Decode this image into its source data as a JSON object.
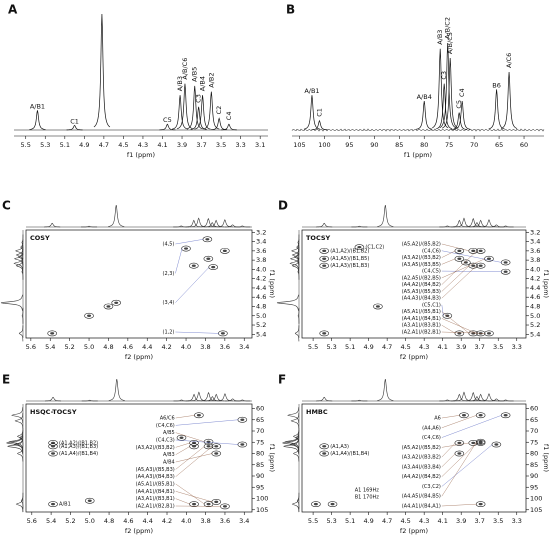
{
  "chart_data": [
    {
      "type": "spectrum",
      "panel": "A",
      "xlabel": "f1 (ppm)",
      "xlim": [
        5.62,
        3.02
      ],
      "xticks": [
        5.5,
        5.3,
        5.1,
        4.9,
        4.7,
        4.5,
        4.3,
        4.1,
        3.9,
        3.7,
        3.5,
        3.3,
        3.1
      ],
      "x": [
        5.38,
        5.0,
        4.72,
        4.05,
        3.92,
        3.87,
        3.77,
        3.73,
        3.69,
        3.6,
        3.52,
        3.42
      ],
      "values": [
        0.17,
        0.04,
        1,
        0.05,
        0.3,
        0.4,
        0.38,
        0.2,
        0.3,
        0.33,
        0.1,
        0.05
      ],
      "labels": [
        "A/B1",
        "C1",
        null,
        "C5",
        "A/B3",
        "A/B/C6",
        "A/B5",
        "C3",
        "A/B4",
        "A/B2",
        "C2",
        "C4"
      ],
      "color": "#111111"
    },
    {
      "type": "spectrum",
      "panel": "B",
      "xlabel": "f1 (ppm)",
      "xlim": [
        106.5,
        56
      ],
      "xticks": [
        105,
        100,
        95,
        90,
        85,
        80,
        75,
        70,
        65,
        60
      ],
      "x": [
        102.5,
        101,
        80,
        76.8,
        76,
        75.3,
        74.8,
        73,
        72.4,
        65.5,
        63
      ],
      "values": [
        0.3,
        0.08,
        0.25,
        0.7,
        0.4,
        0.75,
        0.62,
        0.15,
        0.25,
        0.35,
        0.5
      ],
      "labels": [
        "A/B1",
        "C1",
        "A/B4",
        "A/B3",
        "C3",
        "A/B/C2",
        "A/B/C5",
        "C5",
        "C4",
        "B6",
        "A/C6"
      ],
      "color": "#111111",
      "noise": true
    },
    {
      "type": "2d",
      "panel": "C",
      "title": "COSY",
      "xlabel": "f2 (ppm)",
      "ylabel": "f1 (ppm)",
      "xlim": [
        5.65,
        3.32
      ],
      "xticks": [
        5.6,
        5.4,
        5.2,
        {
          "value": 5,
          "label": "5.0"
        },
        4.8,
        4.6,
        4.4,
        4.2,
        {
          "value": 4,
          "label": "4.0"
        },
        3.8,
        3.6,
        3.4
      ],
      "ylim": [
        3.15,
        5.48
      ],
      "yticks": [
        3.2,
        3.4,
        3.6,
        3.8,
        {
          "value": 4,
          "label": "4.0"
        },
        4.2,
        4.4,
        4.6,
        4.8,
        {
          "value": 5,
          "label": "5.0"
        },
        5.2,
        5.4
      ],
      "x": [
        5.38,
        5.0,
        4.8,
        4.72,
        3.92,
        3.77,
        3.6,
        3.78,
        4.0,
        3.72,
        3.62
      ],
      "y": [
        5.38,
        5.0,
        4.8,
        4.72,
        3.92,
        3.77,
        3.6,
        3.35,
        3.55,
        3.95,
        5.38
      ],
      "labels": [
        null,
        null,
        null,
        null,
        null,
        null,
        null,
        "(4,5)",
        "(2,3)",
        "(3,4)",
        "(1,2)"
      ],
      "label_color": "#7a3a1a",
      "alt_label_color": "#2a3cb0"
    },
    {
      "type": "2d",
      "panel": "D",
      "title": "TOCSY",
      "xlabel": "f2 (ppm)",
      "ylabel": "f1 (ppm)",
      "xlim": [
        5.62,
        3.2
      ],
      "xticks": [
        5.5,
        5.3,
        5.1,
        4.9,
        4.7,
        4.5,
        4.3,
        4.1,
        3.9,
        3.7,
        3.5,
        3.3
      ],
      "ylim": [
        3.15,
        5.48
      ],
      "yticks": [
        3.2,
        3.4,
        3.6,
        3.8,
        {
          "value": 4,
          "label": "4.0"
        },
        4.2,
        4.4,
        4.6,
        4.8,
        {
          "value": 5,
          "label": "5.0"
        },
        5.2,
        5.4
      ],
      "x": [
        5.38,
        4.8,
        3.85,
        5.38,
        5.38,
        5.38,
        5.0,
        3.77,
        3.42,
        3.92,
        3.92,
        3.42,
        3.6,
        3.69,
        3.77,
        3.69,
        4.05,
        3.77,
        3.69,
        3.92,
        3.6
      ],
      "y": [
        5.38,
        4.8,
        3.85,
        3.6,
        3.77,
        3.92,
        3.52,
        3.6,
        3.85,
        3.6,
        3.77,
        4.05,
        3.77,
        3.6,
        3.92,
        3.92,
        5.0,
        5.38,
        5.38,
        5.38,
        5.38
      ],
      "labels": [
        null,
        null,
        null,
        "(A1,A2)/(B1,B2)",
        "(A1,A5)/(B1,B5)",
        "(A1,A3)/(B1,B3)",
        "(C1,C2)",
        "(A5,A2)/(B5,B2)",
        "(C4,C6)",
        "(A3,A2)/(B3,B2)",
        "(A3,A5)/(B3,B5)",
        "(C4,C5)",
        "(A2,A5)/(B2,B5)",
        "(A4,A2)/(B4,B2)",
        "(A5,A3)/(B5,B3)",
        "(A4,A3)/(B4,B3)",
        "(C5,C1)",
        "(A5,A1)/(B5,B1)",
        "(A4,A1)/(B4,B1)",
        "(A3,A1)/(B3,B1)",
        "(A2,A1)/(B2,B1)"
      ],
      "label_color": "#7a3a1a",
      "alt_label_color": "#2a3cb0"
    },
    {
      "type": "2d",
      "panel": "E",
      "title": "HSQC-TOCSY",
      "xlabel": "f2 (ppm)",
      "ylabel": "f1 (ppm)",
      "xlim": [
        5.66,
        3.32
      ],
      "xticks": [
        5.6,
        5.4,
        5.2,
        {
          "value": 5,
          "label": "5.0"
        },
        4.8,
        4.6,
        4.4,
        4.2,
        {
          "value": 4,
          "label": "4.0"
        },
        3.8,
        3.6,
        3.4
      ],
      "ylim": [
        58,
        106
      ],
      "yticks": [
        60,
        65,
        70,
        75,
        80,
        85,
        90,
        95,
        100,
        105
      ],
      "x": [
        5.0,
        4.05,
        5.38,
        5.38,
        5.38,
        5.38,
        3.87,
        3.42,
        3.77,
        3.42,
        3.92,
        3.92,
        3.69,
        3.77,
        3.69,
        3.77,
        3.69,
        3.92,
        3.6
      ],
      "y": [
        101,
        73,
        75.3,
        76.8,
        80,
        102.5,
        63,
        65,
        74.8,
        76,
        75.3,
        76.8,
        80,
        76.8,
        76.8,
        102.5,
        101.5,
        102.5,
        103.5
      ],
      "labels": [
        null,
        null,
        "(A1,A2)/(B1,B2)",
        "(A1,A3)/(B1,B3)",
        "(A1,A4)/(B1,B4)",
        "A/B1",
        "A6/C6",
        "(C4,C6)",
        "A/B5",
        "(C4,C3)",
        "(A3,A2)/(B3,B2)",
        "A/B3",
        "A/B4",
        "(A5,A3)/(B5,B3)",
        "(A4,A3)/(B4,B3)",
        "(A5,A1)/(B5,B1)",
        "(A4,A1)/(B4,B1)",
        "(A3,A1)/(B3,B1)",
        "(A2,A1)/(B2,B1)"
      ],
      "label_color": "#7a3a1a",
      "alt_label_color": "#2a3cb0"
    },
    {
      "type": "2d",
      "panel": "F",
      "title": "HMBC",
      "xlabel": "f2 (ppm)",
      "ylabel": "f1 (ppm)",
      "xlim": [
        5.62,
        3.2
      ],
      "xticks": [
        5.5,
        5.3,
        5.1,
        4.9,
        4.7,
        4.5,
        4.3,
        4.1,
        3.9,
        3.7,
        3.5,
        3.3
      ],
      "ylim": [
        58,
        106
      ],
      "yticks": [
        60,
        65,
        70,
        75,
        80,
        85,
        90,
        95,
        100,
        105
      ],
      "x": [
        5.47,
        5.29,
        5.38,
        5.38,
        3.87,
        3.69,
        3.42,
        3.77,
        3.92,
        3.92,
        3.69,
        3.52,
        3.69,
        3.69
      ],
      "y": [
        102.5,
        102.5,
        76.8,
        80,
        63,
        63,
        63,
        75.3,
        75.3,
        80,
        75.3,
        76,
        74.8,
        102.5
      ],
      "labels": [
        null,
        null,
        "(A1,A3)",
        "(A1,A4)/(B1,B4)",
        "A6",
        "(A4,A6)",
        "(C4,C6)",
        "(A5,A2)/(B5,B2)",
        "(A3,A2)/(B3,B2)",
        "(A3,A4)/(B3,B4)",
        "(A4,A2)/(B4,B2)",
        "(C3,C2)",
        "(A4,A5)/(B4,B5)",
        "(A4,A1)/(B4,A1)"
      ],
      "annotations": [
        "A1 169Hz",
        "B1 170Hz"
      ],
      "label_color": "#7a3a1a",
      "alt_label_color": "#2a3cb0"
    }
  ]
}
